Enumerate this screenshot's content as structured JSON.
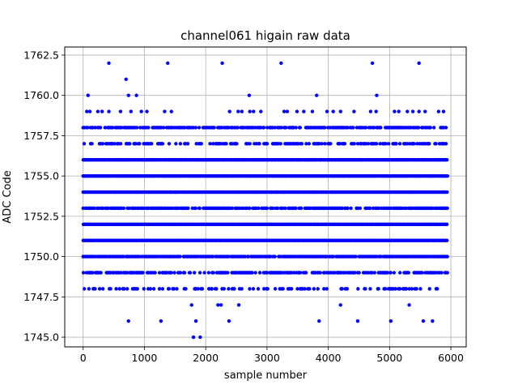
{
  "chart_data": {
    "type": "scatter",
    "title": "channel061 higain raw data",
    "xlabel": "sample number",
    "ylabel": "ADC Code",
    "xlim": [
      -300,
      6250
    ],
    "ylim": [
      1744.4,
      1763.0
    ],
    "xticks": [
      0,
      1000,
      2000,
      3000,
      4000,
      5000,
      6000
    ],
    "xtick_labels": [
      "0",
      "1000",
      "2000",
      "3000",
      "4000",
      "5000",
      "6000"
    ],
    "yticks": [
      1745.0,
      1747.5,
      1750.0,
      1752.5,
      1755.0,
      1757.5,
      1760.0,
      1762.5
    ],
    "ytick_labels": [
      "1745.0",
      "1747.5",
      "1750.0",
      "1752.5",
      "1755.0",
      "1757.5",
      "1760.0",
      "1762.5"
    ],
    "grid": true,
    "marker_color": "#0000ff",
    "x_range": [
      0,
      5950
    ],
    "level_density": [
      {
        "y": 1745,
        "fraction": 0.0
      },
      {
        "y": 1746,
        "fraction": 0.0
      },
      {
        "y": 1747,
        "fraction": 0.0
      },
      {
        "y": 1748,
        "fraction": 0.35
      },
      {
        "y": 1749,
        "fraction": 0.6
      },
      {
        "y": 1750,
        "fraction": 0.9
      },
      {
        "y": 1751,
        "fraction": 1.0
      },
      {
        "y": 1752,
        "fraction": 1.0
      },
      {
        "y": 1753,
        "fraction": 0.8
      },
      {
        "y": 1754,
        "fraction": 1.0
      },
      {
        "y": 1755,
        "fraction": 1.0
      },
      {
        "y": 1756,
        "fraction": 1.0
      },
      {
        "y": 1757,
        "fraction": 0.45
      },
      {
        "y": 1758,
        "fraction": 0.7
      },
      {
        "y": 1759,
        "fraction": 0.0
      },
      {
        "y": 1760,
        "fraction": 0.0
      },
      {
        "y": 1761,
        "fraction": 0.0
      },
      {
        "y": 1762,
        "fraction": 0.0
      }
    ],
    "outliers": [
      {
        "x": 420,
        "y": 1762
      },
      {
        "x": 1380,
        "y": 1762
      },
      {
        "x": 2270,
        "y": 1762
      },
      {
        "x": 3230,
        "y": 1762
      },
      {
        "x": 4720,
        "y": 1762
      },
      {
        "x": 5480,
        "y": 1762
      },
      {
        "x": 700,
        "y": 1761
      },
      {
        "x": 80,
        "y": 1760
      },
      {
        "x": 740,
        "y": 1760
      },
      {
        "x": 870,
        "y": 1760
      },
      {
        "x": 2710,
        "y": 1760
      },
      {
        "x": 3810,
        "y": 1760
      },
      {
        "x": 4790,
        "y": 1760
      },
      {
        "x": 60,
        "y": 1759
      },
      {
        "x": 110,
        "y": 1759
      },
      {
        "x": 240,
        "y": 1759
      },
      {
        "x": 310,
        "y": 1759
      },
      {
        "x": 420,
        "y": 1759
      },
      {
        "x": 610,
        "y": 1759
      },
      {
        "x": 780,
        "y": 1759
      },
      {
        "x": 950,
        "y": 1759
      },
      {
        "x": 1040,
        "y": 1759
      },
      {
        "x": 1330,
        "y": 1759
      },
      {
        "x": 1440,
        "y": 1759
      },
      {
        "x": 2390,
        "y": 1759
      },
      {
        "x": 2530,
        "y": 1759
      },
      {
        "x": 2590,
        "y": 1759
      },
      {
        "x": 2720,
        "y": 1759
      },
      {
        "x": 2780,
        "y": 1759
      },
      {
        "x": 2900,
        "y": 1759
      },
      {
        "x": 3280,
        "y": 1759
      },
      {
        "x": 3330,
        "y": 1759
      },
      {
        "x": 3490,
        "y": 1759
      },
      {
        "x": 3600,
        "y": 1759
      },
      {
        "x": 3740,
        "y": 1759
      },
      {
        "x": 3980,
        "y": 1759
      },
      {
        "x": 4080,
        "y": 1759
      },
      {
        "x": 4200,
        "y": 1759
      },
      {
        "x": 4420,
        "y": 1759
      },
      {
        "x": 4690,
        "y": 1759
      },
      {
        "x": 4780,
        "y": 1759
      },
      {
        "x": 5080,
        "y": 1759
      },
      {
        "x": 5150,
        "y": 1759
      },
      {
        "x": 5290,
        "y": 1759
      },
      {
        "x": 5380,
        "y": 1759
      },
      {
        "x": 5480,
        "y": 1759
      },
      {
        "x": 5580,
        "y": 1759
      },
      {
        "x": 5800,
        "y": 1759
      },
      {
        "x": 5880,
        "y": 1759
      },
      {
        "x": 1770,
        "y": 1747
      },
      {
        "x": 2200,
        "y": 1747
      },
      {
        "x": 2250,
        "y": 1747
      },
      {
        "x": 2540,
        "y": 1747
      },
      {
        "x": 4200,
        "y": 1747
      },
      {
        "x": 5320,
        "y": 1747
      },
      {
        "x": 740,
        "y": 1746
      },
      {
        "x": 1270,
        "y": 1746
      },
      {
        "x": 1840,
        "y": 1746
      },
      {
        "x": 2380,
        "y": 1746
      },
      {
        "x": 3850,
        "y": 1746
      },
      {
        "x": 4480,
        "y": 1746
      },
      {
        "x": 5020,
        "y": 1746
      },
      {
        "x": 5550,
        "y": 1746
      },
      {
        "x": 5700,
        "y": 1746
      },
      {
        "x": 1800,
        "y": 1745
      },
      {
        "x": 1910,
        "y": 1745
      }
    ]
  }
}
